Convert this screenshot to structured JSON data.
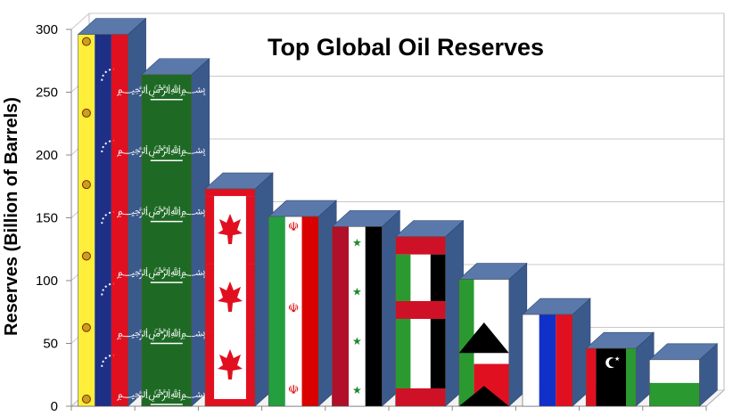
{
  "chart_data": {
    "type": "bar",
    "title": "Top Global Oil Reserves",
    "xlabel": "",
    "ylabel": "Reserves (Billion of Barrels)",
    "ylim": [
      0,
      300
    ],
    "yticks": [
      "0",
      "50",
      "100",
      "150",
      "200",
      "250",
      "300"
    ],
    "grid": true,
    "legend": "none",
    "bars": [
      {
        "flag": "venezuela",
        "value": 296
      },
      {
        "flag": "saudi-arabia",
        "value": 264
      },
      {
        "flag": "canada",
        "value": 173
      },
      {
        "flag": "iran",
        "value": 151
      },
      {
        "flag": "iraq",
        "value": 143
      },
      {
        "flag": "kuwait",
        "value": 135
      },
      {
        "flag": "uae",
        "value": 101
      },
      {
        "flag": "russia",
        "value": 73
      },
      {
        "flag": "libya",
        "value": 46
      },
      {
        "flag": "nigeria",
        "value": 37
      }
    ]
  },
  "colors": {
    "side": "#3b5a8c",
    "top": "#5a79aa",
    "grid": "#c8c8c8",
    "wall": "#ffffff"
  }
}
